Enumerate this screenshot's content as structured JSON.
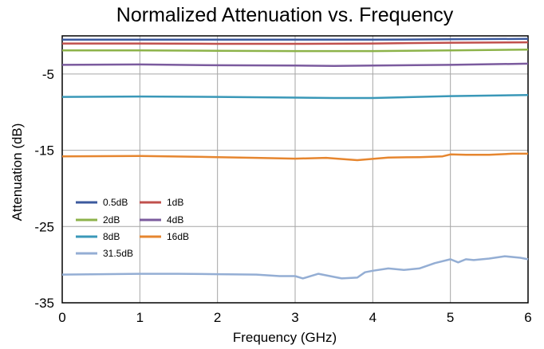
{
  "chart_data": {
    "type": "line",
    "title": "Normalized Attenuation vs. Frequency",
    "xlabel": "Frequency (GHz)",
    "ylabel": "Attenuation (dB)",
    "xlim": [
      0,
      6
    ],
    "ylim": [
      -35,
      0
    ],
    "xticks": [
      0,
      1,
      2,
      3,
      4,
      5,
      6
    ],
    "yticks": [
      -5,
      -15,
      -25,
      -35
    ],
    "grid": true,
    "legend_position": "lower-left",
    "series": [
      {
        "name": "0.5dB",
        "color": "#3c5a9e",
        "x": [
          0,
          1,
          2,
          3,
          4,
          5,
          6
        ],
        "y": [
          -0.5,
          -0.5,
          -0.5,
          -0.5,
          -0.5,
          -0.45,
          -0.4
        ]
      },
      {
        "name": "1dB",
        "color": "#c0504d",
        "x": [
          0,
          1,
          2,
          3,
          4,
          5,
          6
        ],
        "y": [
          -1.0,
          -1.0,
          -1.05,
          -1.05,
          -1.0,
          -0.9,
          -0.85
        ]
      },
      {
        "name": "2dB",
        "color": "#8db34a",
        "x": [
          0,
          1,
          2,
          3,
          4,
          5,
          6
        ],
        "y": [
          -1.9,
          -1.9,
          -1.95,
          -2.0,
          -2.0,
          -1.9,
          -1.8
        ]
      },
      {
        "name": "4dB",
        "color": "#7b5b9e",
        "x": [
          0,
          1,
          2,
          3,
          3.5,
          4,
          5,
          6
        ],
        "y": [
          -3.8,
          -3.75,
          -3.85,
          -3.9,
          -3.95,
          -3.9,
          -3.8,
          -3.65
        ]
      },
      {
        "name": "8dB",
        "color": "#3a98b8",
        "x": [
          0,
          1,
          2,
          3,
          3.5,
          4,
          5,
          6
        ],
        "y": [
          -8.0,
          -7.95,
          -8.0,
          -8.1,
          -8.15,
          -8.15,
          -7.9,
          -7.75
        ]
      },
      {
        "name": "16dB",
        "color": "#e6862f",
        "x": [
          0,
          1,
          2,
          2.5,
          3,
          3.4,
          3.8,
          4.2,
          4.6,
          4.9,
          5.0,
          5.2,
          5.5,
          5.8,
          6
        ],
        "y": [
          -15.8,
          -15.75,
          -15.9,
          -16.0,
          -16.1,
          -16.0,
          -16.3,
          -15.95,
          -15.9,
          -15.8,
          -15.55,
          -15.6,
          -15.6,
          -15.45,
          -15.45
        ]
      },
      {
        "name": "31.5dB",
        "color": "#94aed4",
        "x": [
          0,
          0.5,
          1,
          1.5,
          2,
          2.5,
          2.8,
          3.0,
          3.1,
          3.3,
          3.5,
          3.6,
          3.8,
          3.9,
          4.0,
          4.2,
          4.4,
          4.6,
          4.8,
          5.0,
          5.1,
          5.2,
          5.3,
          5.5,
          5.7,
          5.9,
          6.0
        ],
        "y": [
          -31.3,
          -31.25,
          -31.2,
          -31.2,
          -31.25,
          -31.3,
          -31.5,
          -31.5,
          -31.8,
          -31.2,
          -31.6,
          -31.8,
          -31.7,
          -31.0,
          -30.8,
          -30.5,
          -30.7,
          -30.5,
          -29.8,
          -29.3,
          -29.7,
          -29.3,
          -29.4,
          -29.2,
          -28.9,
          -29.1,
          -29.3
        ]
      }
    ]
  }
}
